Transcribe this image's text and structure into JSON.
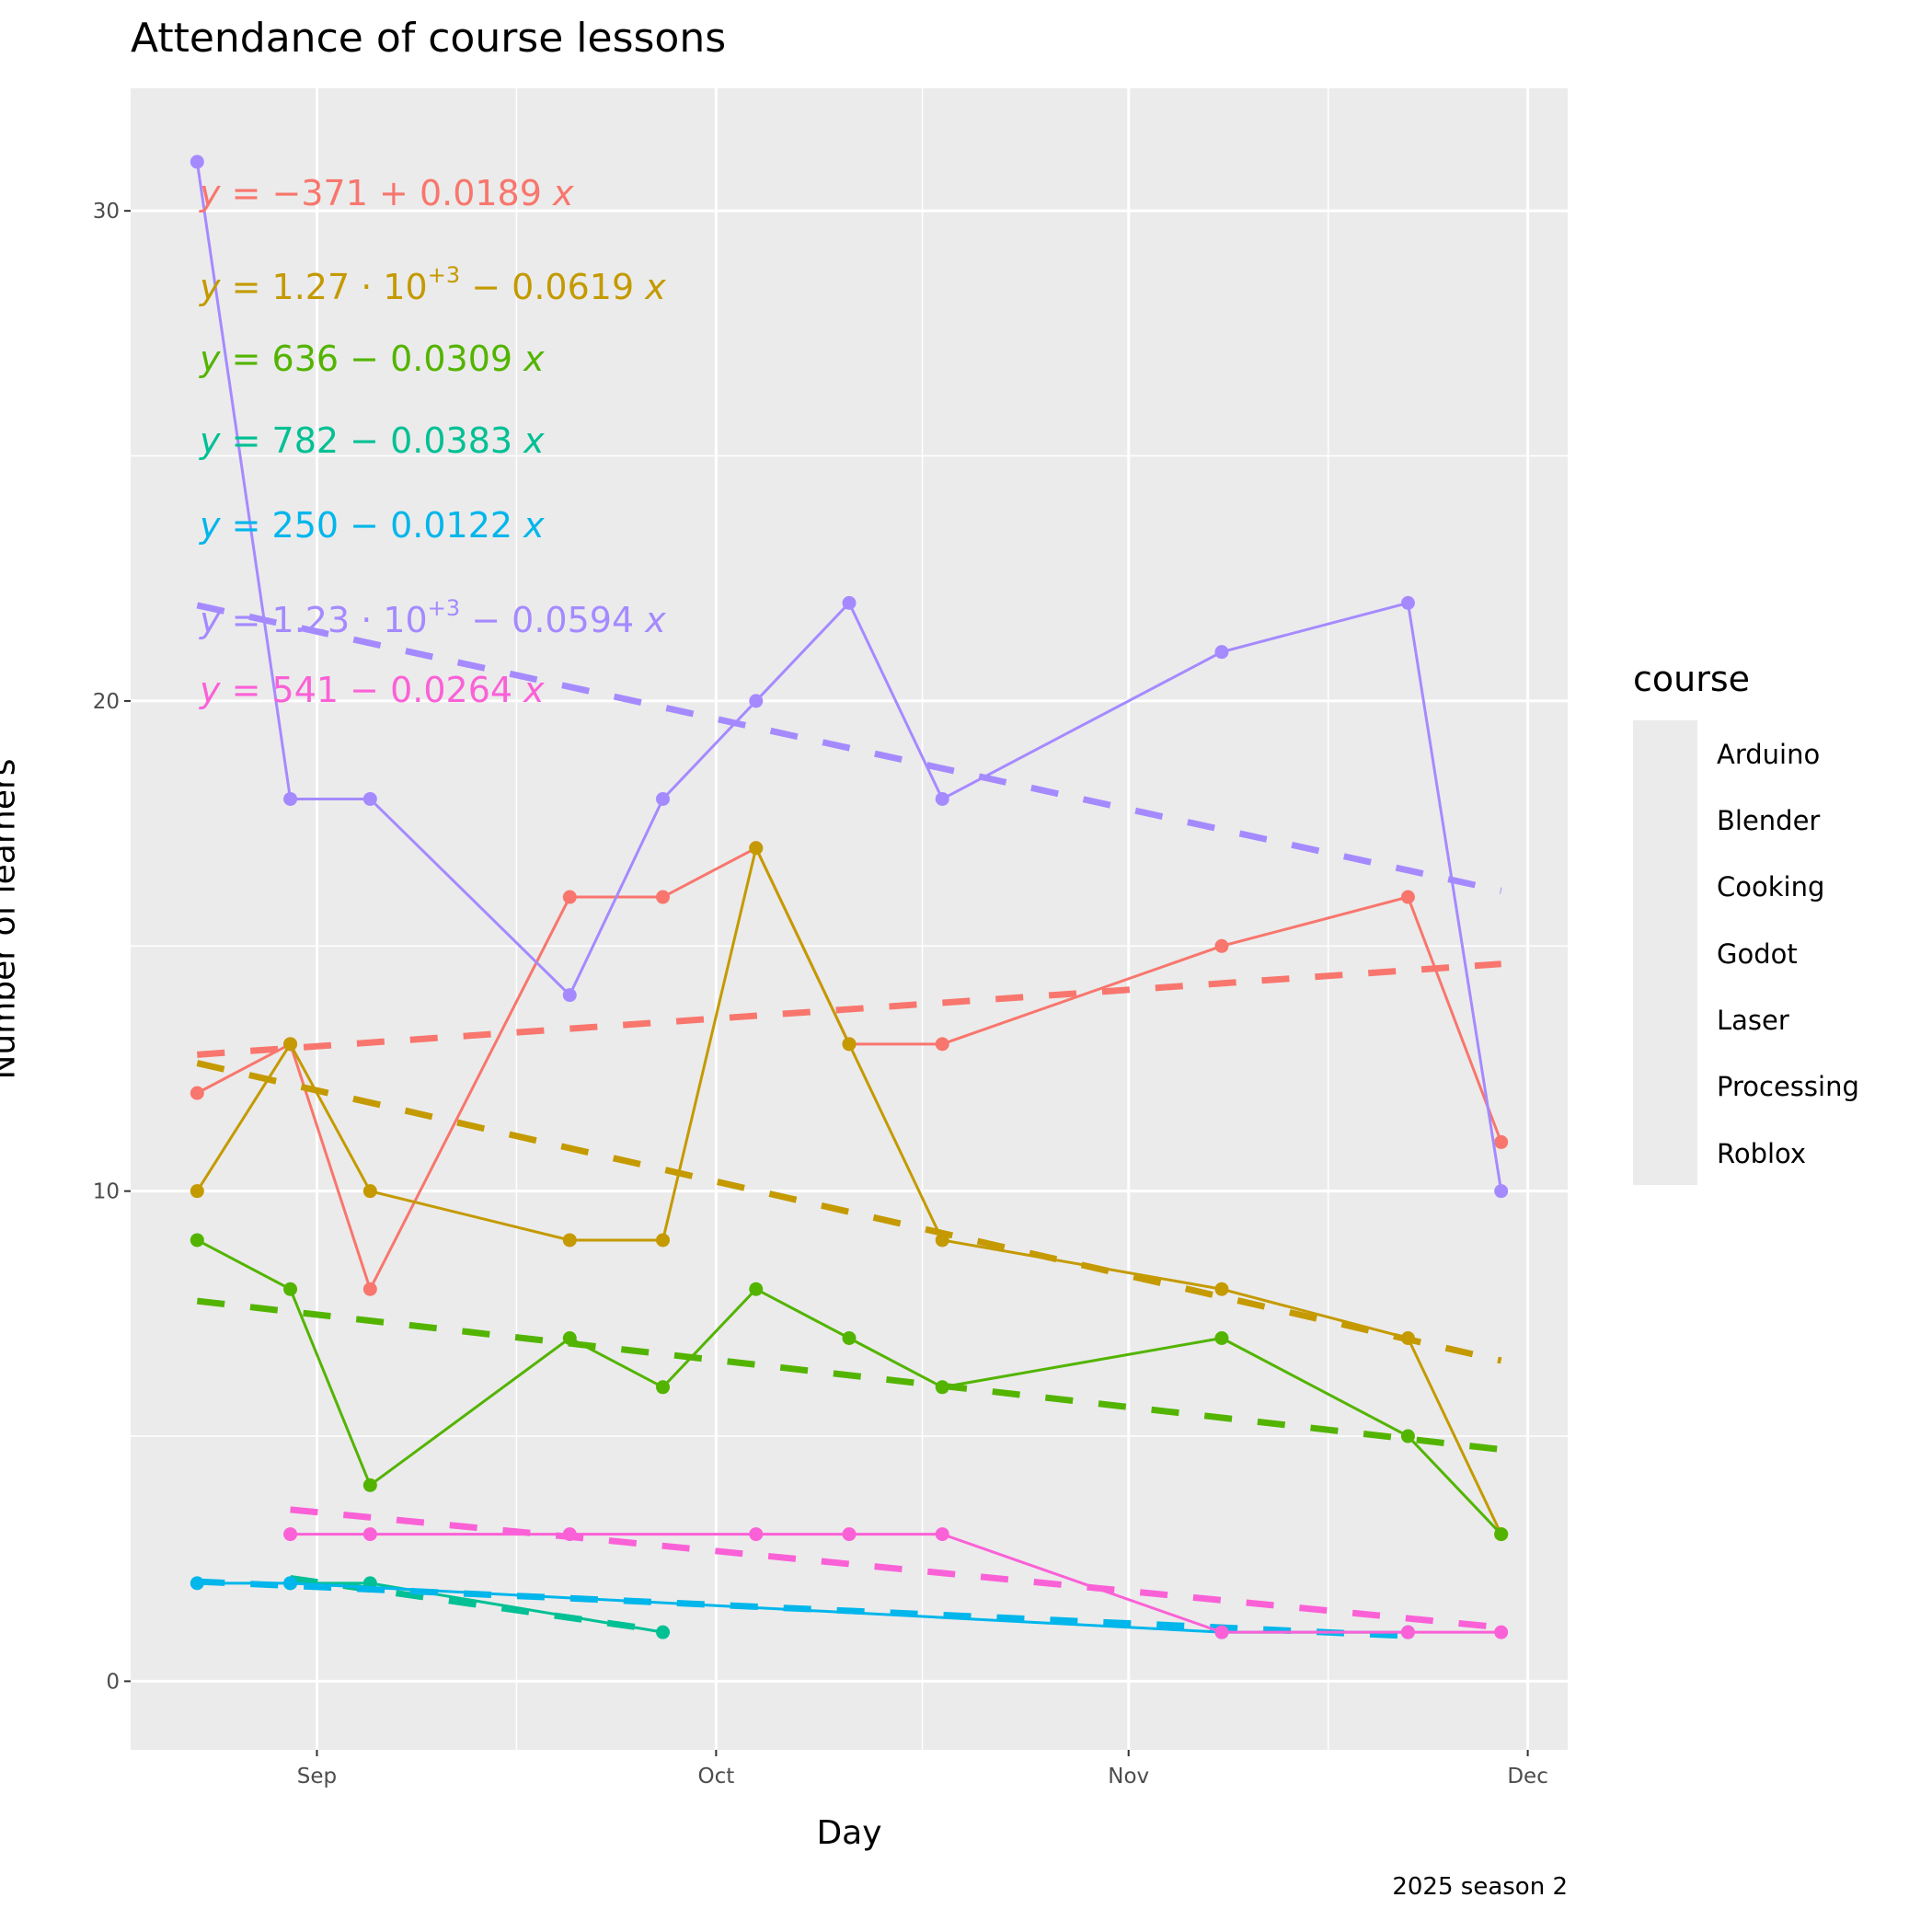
{
  "chart_data": {
    "type": "line",
    "title": "Attendance of course lessons",
    "caption": "2025 season 2",
    "xlabel": "Day",
    "ylabel": "Number of learners",
    "xlim": [
      "2025-08-18",
      "2025-12-04"
    ],
    "ylim": [
      -1.4,
      32.5
    ],
    "x_ticks": [
      {
        "date": "2025-09-01",
        "label": "Sep"
      },
      {
        "date": "2025-10-01",
        "label": "Oct"
      },
      {
        "date": "2025-11-01",
        "label": "Nov"
      },
      {
        "date": "2025-12-01",
        "label": "Dec"
      }
    ],
    "y_ticks": [
      0,
      10,
      20,
      30
    ],
    "grid": true,
    "background": "#ebebeb",
    "legend": {
      "title": "course",
      "position": "right"
    },
    "trend_lines": "linear regression per course, dashed",
    "series": [
      {
        "name": "Arduino",
        "color": "#F8766D",
        "equation": {
          "lhs": "y",
          "eq": "=",
          "intercept": "−371",
          "exp": "",
          "op": "+",
          "slope": "0.0189",
          "var": "x"
        },
        "points": [
          [
            "2025-08-23",
            12
          ],
          [
            "2025-08-30",
            13
          ],
          [
            "2025-09-05",
            8
          ],
          [
            "2025-09-20",
            16
          ],
          [
            "2025-09-27",
            16
          ],
          [
            "2025-10-04",
            17
          ],
          [
            "2025-10-11",
            13
          ],
          [
            "2025-10-18",
            13
          ],
          [
            "2025-11-08",
            15
          ],
          [
            "2025-11-22",
            16
          ],
          [
            "2025-11-29",
            11
          ]
        ]
      },
      {
        "name": "Blender",
        "color": "#C49A00",
        "equation": {
          "lhs": "y",
          "eq": "=",
          "intercept": "1.27 · 10",
          "exp": "+3",
          "op": "−",
          "slope": "0.0619",
          "var": "x"
        },
        "points": [
          [
            "2025-08-23",
            10
          ],
          [
            "2025-08-30",
            13
          ],
          [
            "2025-09-05",
            10
          ],
          [
            "2025-09-20",
            9
          ],
          [
            "2025-09-27",
            9
          ],
          [
            "2025-10-04",
            17
          ],
          [
            "2025-10-11",
            13
          ],
          [
            "2025-10-18",
            9
          ],
          [
            "2025-11-08",
            8
          ],
          [
            "2025-11-22",
            7
          ],
          [
            "2025-11-29",
            3
          ]
        ]
      },
      {
        "name": "Cooking",
        "color": "#53B400",
        "equation": {
          "lhs": "y",
          "eq": "=",
          "intercept": "636",
          "exp": "",
          "op": "−",
          "slope": "0.0309",
          "var": "x"
        },
        "points": [
          [
            "2025-08-23",
            9
          ],
          [
            "2025-08-30",
            8
          ],
          [
            "2025-09-05",
            4
          ],
          [
            "2025-09-20",
            7
          ],
          [
            "2025-09-27",
            6
          ],
          [
            "2025-10-04",
            8
          ],
          [
            "2025-10-11",
            7
          ],
          [
            "2025-10-18",
            6
          ],
          [
            "2025-11-08",
            7
          ],
          [
            "2025-11-22",
            5
          ],
          [
            "2025-11-29",
            3
          ]
        ]
      },
      {
        "name": "Godot",
        "color": "#00C094",
        "equation": {
          "lhs": "y",
          "eq": "=",
          "intercept": "782",
          "exp": "",
          "op": "−",
          "slope": "0.0383",
          "var": "x"
        },
        "points": [
          [
            "2025-08-30",
            2
          ],
          [
            "2025-09-05",
            2
          ],
          [
            "2025-09-27",
            1
          ]
        ]
      },
      {
        "name": "Laser",
        "color": "#00B6EB",
        "equation": {
          "lhs": "y",
          "eq": "=",
          "intercept": "250",
          "exp": "",
          "op": "−",
          "slope": "0.0122",
          "var": "x"
        },
        "points": [
          [
            "2025-08-23",
            2
          ],
          [
            "2025-08-30",
            2
          ],
          [
            "2025-11-08",
            1
          ],
          [
            "2025-11-22",
            1
          ]
        ]
      },
      {
        "name": "Processing",
        "color": "#A58AFF",
        "equation": {
          "lhs": "y",
          "eq": "=",
          "intercept": "1.23 · 10",
          "exp": "+3",
          "op": "−",
          "slope": "0.0594",
          "var": "x"
        },
        "points": [
          [
            "2025-08-23",
            31
          ],
          [
            "2025-08-30",
            18
          ],
          [
            "2025-09-05",
            18
          ],
          [
            "2025-09-20",
            14
          ],
          [
            "2025-09-27",
            18
          ],
          [
            "2025-10-04",
            20
          ],
          [
            "2025-10-11",
            22
          ],
          [
            "2025-10-18",
            18
          ],
          [
            "2025-11-08",
            21
          ],
          [
            "2025-11-22",
            22
          ],
          [
            "2025-11-29",
            10
          ]
        ]
      },
      {
        "name": "Roblox",
        "color": "#FB61D7",
        "equation": {
          "lhs": "y",
          "eq": "=",
          "intercept": "541",
          "exp": "",
          "op": "−",
          "slope": "0.0264",
          "var": "x"
        },
        "points": [
          [
            "2025-08-30",
            3
          ],
          [
            "2025-09-05",
            3
          ],
          [
            "2025-09-20",
            3
          ],
          [
            "2025-10-04",
            3
          ],
          [
            "2025-10-11",
            3
          ],
          [
            "2025-10-18",
            3
          ],
          [
            "2025-11-08",
            1
          ],
          [
            "2025-11-22",
            1
          ],
          [
            "2025-11-29",
            1
          ]
        ]
      }
    ]
  }
}
